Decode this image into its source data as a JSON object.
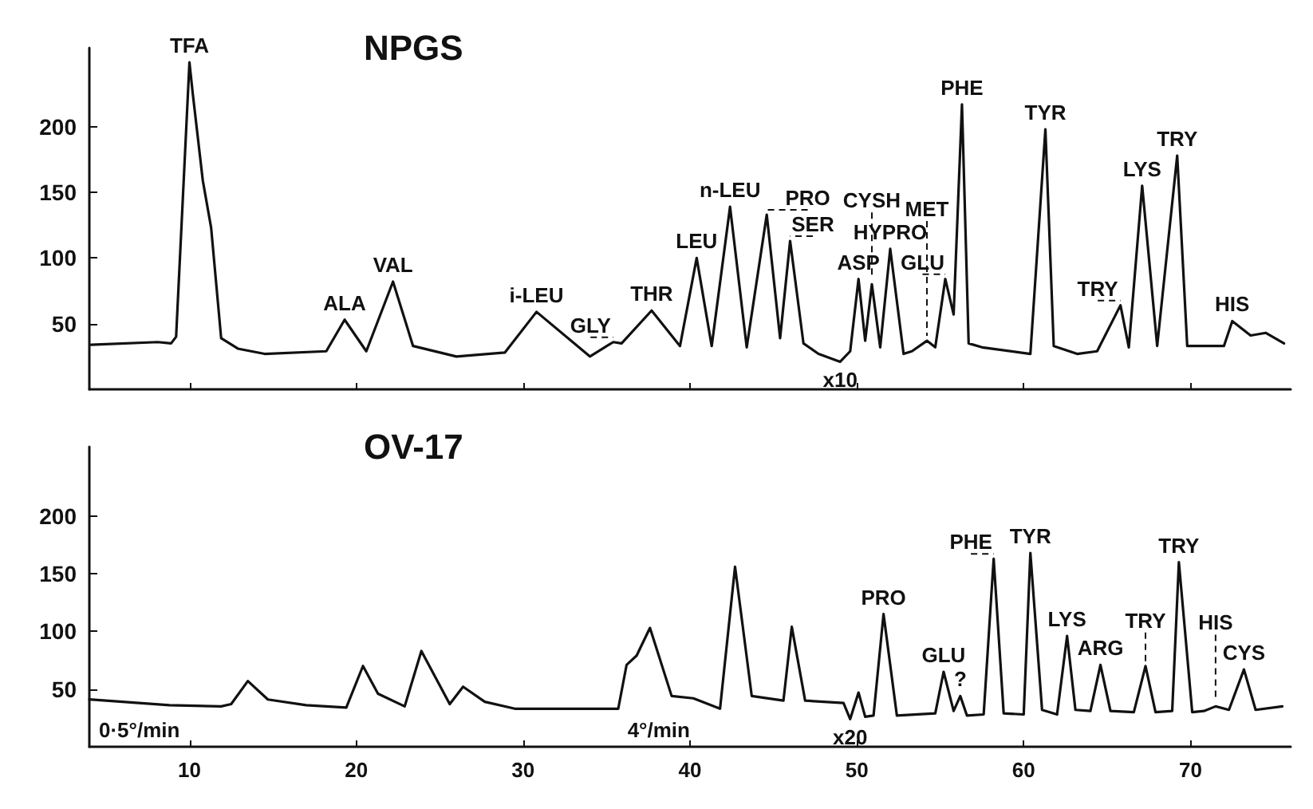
{
  "chart_data": [
    {
      "type": "line",
      "title": "NPGS",
      "xlim": [
        4,
        76
      ],
      "ylim": [
        0,
        260
      ],
      "xticks": [
        10,
        20,
        30,
        40,
        50,
        60,
        70
      ],
      "yticks": [
        50,
        100,
        150,
        200
      ],
      "tick_labels": "y",
      "grid": false,
      "marker": "none",
      "line_style": "solid",
      "series": [
        {
          "color": "#111111",
          "x": [
            4.1,
            8.1,
            8.9,
            9.2,
            10,
            10.2,
            10.8,
            11.3,
            11.9,
            12.9,
            14.5,
            18.2,
            19.3,
            20.6,
            22.2,
            23.4,
            26,
            28.9,
            30.8,
            34,
            35.4,
            35.9,
            37.7,
            39.4,
            40.4,
            41.3,
            42.4,
            43.4,
            44.6,
            45.4,
            46,
            46.8,
            47.7,
            49,
            49.6,
            50.1,
            50.5,
            50.9,
            51.4,
            52,
            52.8,
            53.3,
            54.2,
            54.7,
            55.3,
            55.8,
            56.3,
            56.7,
            57.5,
            60.4,
            61.3,
            61.8,
            63.2,
            64.4,
            65.8,
            66.3,
            67.1,
            68,
            69.2,
            69.8,
            72,
            72.5,
            73.6,
            74.5,
            75.6
          ],
          "values": [
            34,
            36,
            35,
            40,
            249,
            225,
            159,
            123,
            39,
            31,
            27,
            29,
            53,
            29,
            82,
            33,
            25,
            28,
            59,
            25,
            36,
            35,
            60,
            33,
            100,
            33,
            139,
            32,
            133,
            39,
            113,
            35,
            27,
            21,
            29,
            84,
            37,
            80,
            32,
            107,
            27,
            29,
            37,
            32,
            84,
            57,
            217,
            35,
            32,
            27,
            198,
            33,
            27,
            29,
            64,
            32,
            155,
            33,
            178,
            33,
            33,
            52,
            41,
            43,
            35
          ]
        }
      ],
      "annotations": [
        {
          "text": "TFA",
          "x": 10,
          "y": 249
        },
        {
          "text": "ALA",
          "x": 19.3,
          "y": 53
        },
        {
          "text": "VAL",
          "x": 22.2,
          "y": 82
        },
        {
          "text": "i-LEU",
          "x": 30.8,
          "y": 59
        },
        {
          "text": "GLY",
          "x": 35.4,
          "y": 36
        },
        {
          "text": "THR",
          "x": 37.7,
          "y": 60
        },
        {
          "text": "n-LEU",
          "x": 42.4,
          "y": 139
        },
        {
          "text": "LEU",
          "x": 40.4,
          "y": 100
        },
        {
          "text": "PRO",
          "x": 44.6,
          "y": 133
        },
        {
          "text": "SER",
          "x": 46,
          "y": 113
        },
        {
          "text": "CYSH",
          "x": 50.9,
          "y": 80
        },
        {
          "text": "ASP",
          "x": 50.1,
          "y": 84
        },
        {
          "text": "HYPRO",
          "x": 52,
          "y": 107
        },
        {
          "text": "GLU",
          "x": 55.3,
          "y": 84
        },
        {
          "text": "MET",
          "x": 54.2,
          "y": 37
        },
        {
          "text": "PHE",
          "x": 56.3,
          "y": 217
        },
        {
          "text": "TYR",
          "x": 61.3,
          "y": 198
        },
        {
          "text": "TRY",
          "x": 65.8,
          "y": 64
        },
        {
          "text": "LYS",
          "x": 67.1,
          "y": 155
        },
        {
          "text": "TRY",
          "x": 69.2,
          "y": 178
        },
        {
          "text": "HIS",
          "x": 72.5,
          "y": 52
        },
        {
          "text": "x10",
          "x": 49,
          "y": 21
        }
      ]
    },
    {
      "type": "line",
      "title": "OV-17",
      "xlim": [
        4,
        76
      ],
      "ylim": [
        0,
        260
      ],
      "xticks": [
        10,
        20,
        30,
        40,
        50,
        60,
        70
      ],
      "yticks": [
        50,
        100,
        150,
        200
      ],
      "grid": false,
      "marker": "none",
      "line_style": "solid",
      "series": [
        {
          "color": "#111111",
          "x": [
            4,
            8.8,
            11.9,
            12.5,
            13.5,
            14.7,
            17,
            19.4,
            20.4,
            21.3,
            22.9,
            23.9,
            25.6,
            26.4,
            27.7,
            29.5,
            35.7,
            36.2,
            36.8,
            37.6,
            38.9,
            40.2,
            41.8,
            42.7,
            43.7,
            45.6,
            46.1,
            46.9,
            49.2,
            49.6,
            50.1,
            50.5,
            51,
            51.6,
            52.4,
            54.7,
            55.2,
            55.8,
            56.2,
            56.6,
            57.6,
            58.2,
            58.8,
            60,
            60.4,
            61.1,
            62,
            62.6,
            63.1,
            64,
            64.6,
            65.2,
            66.6,
            67.3,
            67.9,
            68.9,
            69.3,
            70.1,
            70.8,
            71.5,
            72.3,
            73.2,
            73.9,
            75.5
          ],
          "values": [
            41,
            36,
            35,
            37,
            57,
            41,
            36,
            34,
            70,
            46,
            35,
            83,
            37,
            52,
            39,
            33,
            33,
            71,
            79,
            103,
            44,
            42,
            33,
            156,
            44,
            40,
            104,
            40,
            38,
            24,
            47,
            26,
            27,
            115,
            27,
            29,
            65,
            31,
            44,
            27,
            28,
            163,
            29,
            28,
            168,
            32,
            28,
            96,
            32,
            31,
            71,
            31,
            30,
            70,
            30,
            31,
            160,
            30,
            31,
            35,
            32,
            67,
            32,
            35
          ]
        }
      ],
      "annotations": [
        {
          "text": "PRO",
          "x": 51.6,
          "y": 115
        },
        {
          "text": "GLU",
          "x": 55.2,
          "y": 65
        },
        {
          "text": "?",
          "x": 56.2,
          "y": 44
        },
        {
          "text": "PHE",
          "x": 58.2,
          "y": 163
        },
        {
          "text": "TYR",
          "x": 60.4,
          "y": 168
        },
        {
          "text": "LYS",
          "x": 62.6,
          "y": 96
        },
        {
          "text": "ARG",
          "x": 64.6,
          "y": 71
        },
        {
          "text": "TRY",
          "x": 67.3,
          "y": 70
        },
        {
          "text": "TRY",
          "x": 69.3,
          "y": 160
        },
        {
          "text": "HIS",
          "x": 71.5,
          "y": 35
        },
        {
          "text": "CYS",
          "x": 73.2,
          "y": 67
        },
        {
          "text": "x20",
          "x": 49.6,
          "y": 24
        },
        "0·5°/min",
        "4°/min"
      ]
    }
  ]
}
